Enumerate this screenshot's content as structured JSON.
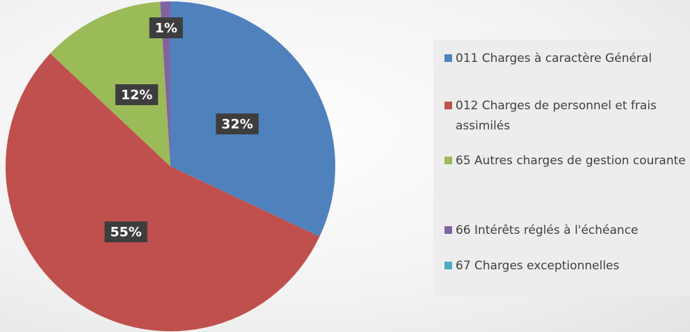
{
  "chart_data": {
    "type": "pie",
    "categories": [
      "011 Charges à caractère Général",
      "012 Charges de personnel et frais assimilés",
      "65  Autres charges de gestion courante",
      "66  Intérêts réglés à l'échéance",
      "67 Charges exceptionnelles"
    ],
    "values": [
      32,
      55,
      12,
      1,
      0
    ],
    "value_labels": [
      "32%",
      "55%",
      "12%",
      "1%",
      null
    ],
    "colors": [
      "#4f81bd",
      "#c0504d",
      "#9bbb59",
      "#8064a2",
      "#4bacc6"
    ],
    "legend": "right"
  }
}
